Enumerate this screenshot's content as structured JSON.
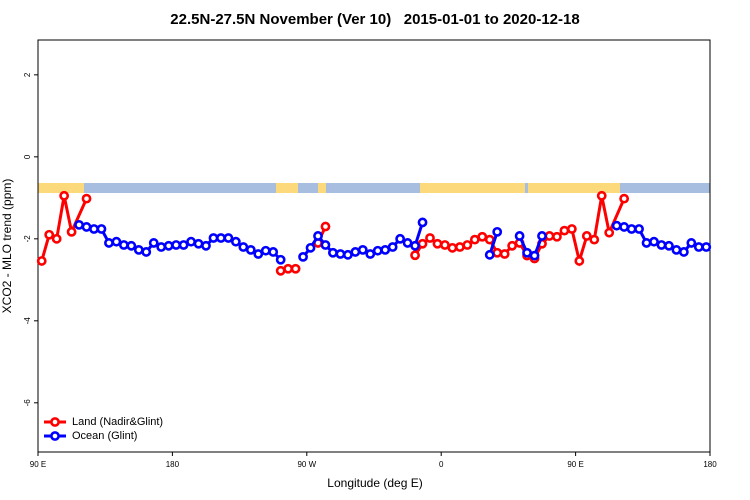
{
  "chart_data": {
    "type": "line",
    "title": "22.5N-27.5N November (Ver 10)   2015-01-01 to 2020-12-18",
    "xlabel": "Longitude (deg E)",
    "ylabel": "XCO2 - MLO trend (ppm)",
    "xlim": [
      90,
      540
    ],
    "ylim": [
      -7.2,
      2.85
    ],
    "xticks": [
      {
        "value": 90,
        "label": "90 E"
      },
      180,
      {
        "value": 270,
        "label": "90 W"
      },
      {
        "value": 360,
        "label": "0"
      },
      {
        "value": 450,
        "label": "90 E"
      },
      {
        "value": 540,
        "label": "180"
      }
    ],
    "yticks": [
      -6,
      -4,
      -2,
      0,
      2
    ],
    "legend": "bottom-left",
    "series": [
      {
        "name": "Land (Nadir&Glint)",
        "color": "#ff0000",
        "x": [
          92.5,
          97.5,
          102.5,
          107.5,
          112.5,
          122.5,
          127.5,
          252.5,
          257.5,
          262.5,
          267.5,
          277.5,
          282.5,
          287.5,
          342.5,
          347.5,
          352.5,
          357.5,
          362.5,
          367.5,
          372.5,
          377.5,
          382.5,
          387.5,
          392.5,
          397.5,
          402.5,
          407.5,
          412.5,
          417.5,
          422.5,
          427.5,
          432.5,
          437.5,
          442.5,
          447.5,
          452.5,
          457.5,
          462.5,
          467.5,
          472.5,
          482.5
        ],
        "values": [
          -2.54,
          -1.9,
          -2.0,
          -0.95,
          -1.83,
          -1.02,
          null,
          -2.78,
          -2.73,
          -2.73,
          null,
          -2.1,
          -1.7,
          null,
          -2.4,
          -2.12,
          -1.98,
          -2.12,
          -2.15,
          -2.22,
          -2.2,
          -2.15,
          -2.02,
          -1.95,
          -2.02,
          -2.34,
          -2.37,
          -2.17,
          -2.1,
          -2.41,
          -2.48,
          -2.12,
          -1.93,
          -1.95,
          -1.8,
          -1.76,
          -2.54,
          -1.93,
          -2.02,
          -0.95,
          -1.85,
          -1.02
        ]
      },
      {
        "name": "Ocean (Glint)",
        "color": "#0000ff",
        "x": [
          117.5,
          122.5,
          127.5,
          132.5,
          137.5,
          142.5,
          147.5,
          152.5,
          157.5,
          162.5,
          167.5,
          172.5,
          177.5,
          182.5,
          187.5,
          192.5,
          197.5,
          202.5,
          207.5,
          212.5,
          217.5,
          222.5,
          227.5,
          232.5,
          237.5,
          242.5,
          247.5,
          252.5,
          257.5,
          267.5,
          272.5,
          277.5,
          282.5,
          287.5,
          292.5,
          297.5,
          302.5,
          307.5,
          312.5,
          317.5,
          322.5,
          327.5,
          332.5,
          337.5,
          342.5,
          347.5,
          352.5,
          392.5,
          397.5,
          402.5,
          412.5,
          417.5,
          422.5,
          427.5,
          432.5,
          477.5,
          482.5,
          487.5,
          492.5,
          497.5,
          502.5,
          507.5,
          512.5,
          517.5,
          522.5,
          527.5,
          532.5,
          537.5
        ],
        "values": [
          -1.66,
          -1.71,
          -1.76,
          -1.76,
          -2.1,
          -2.07,
          -2.15,
          -2.17,
          -2.27,
          -2.32,
          -2.1,
          -2.2,
          -2.17,
          -2.15,
          -2.15,
          -2.07,
          -2.12,
          -2.17,
          -1.98,
          -1.98,
          -1.98,
          -2.07,
          -2.2,
          -2.27,
          -2.37,
          -2.29,
          -2.32,
          -2.51,
          null,
          -2.44,
          -2.22,
          -1.93,
          -2.15,
          -2.34,
          -2.37,
          -2.39,
          -2.32,
          -2.27,
          -2.37,
          -2.29,
          -2.27,
          -2.2,
          -2.0,
          -2.1,
          -2.17,
          -1.6,
          null,
          -2.39,
          -1.83,
          null,
          -1.93,
          -2.34,
          -2.41,
          -1.93,
          null,
          -1.68,
          -1.71,
          -1.76,
          -1.76,
          -2.1,
          -2.07,
          -2.15,
          -2.17,
          -2.27,
          -2.32,
          -2.1,
          -2.2,
          -2.2
        ]
      }
    ]
  }
}
